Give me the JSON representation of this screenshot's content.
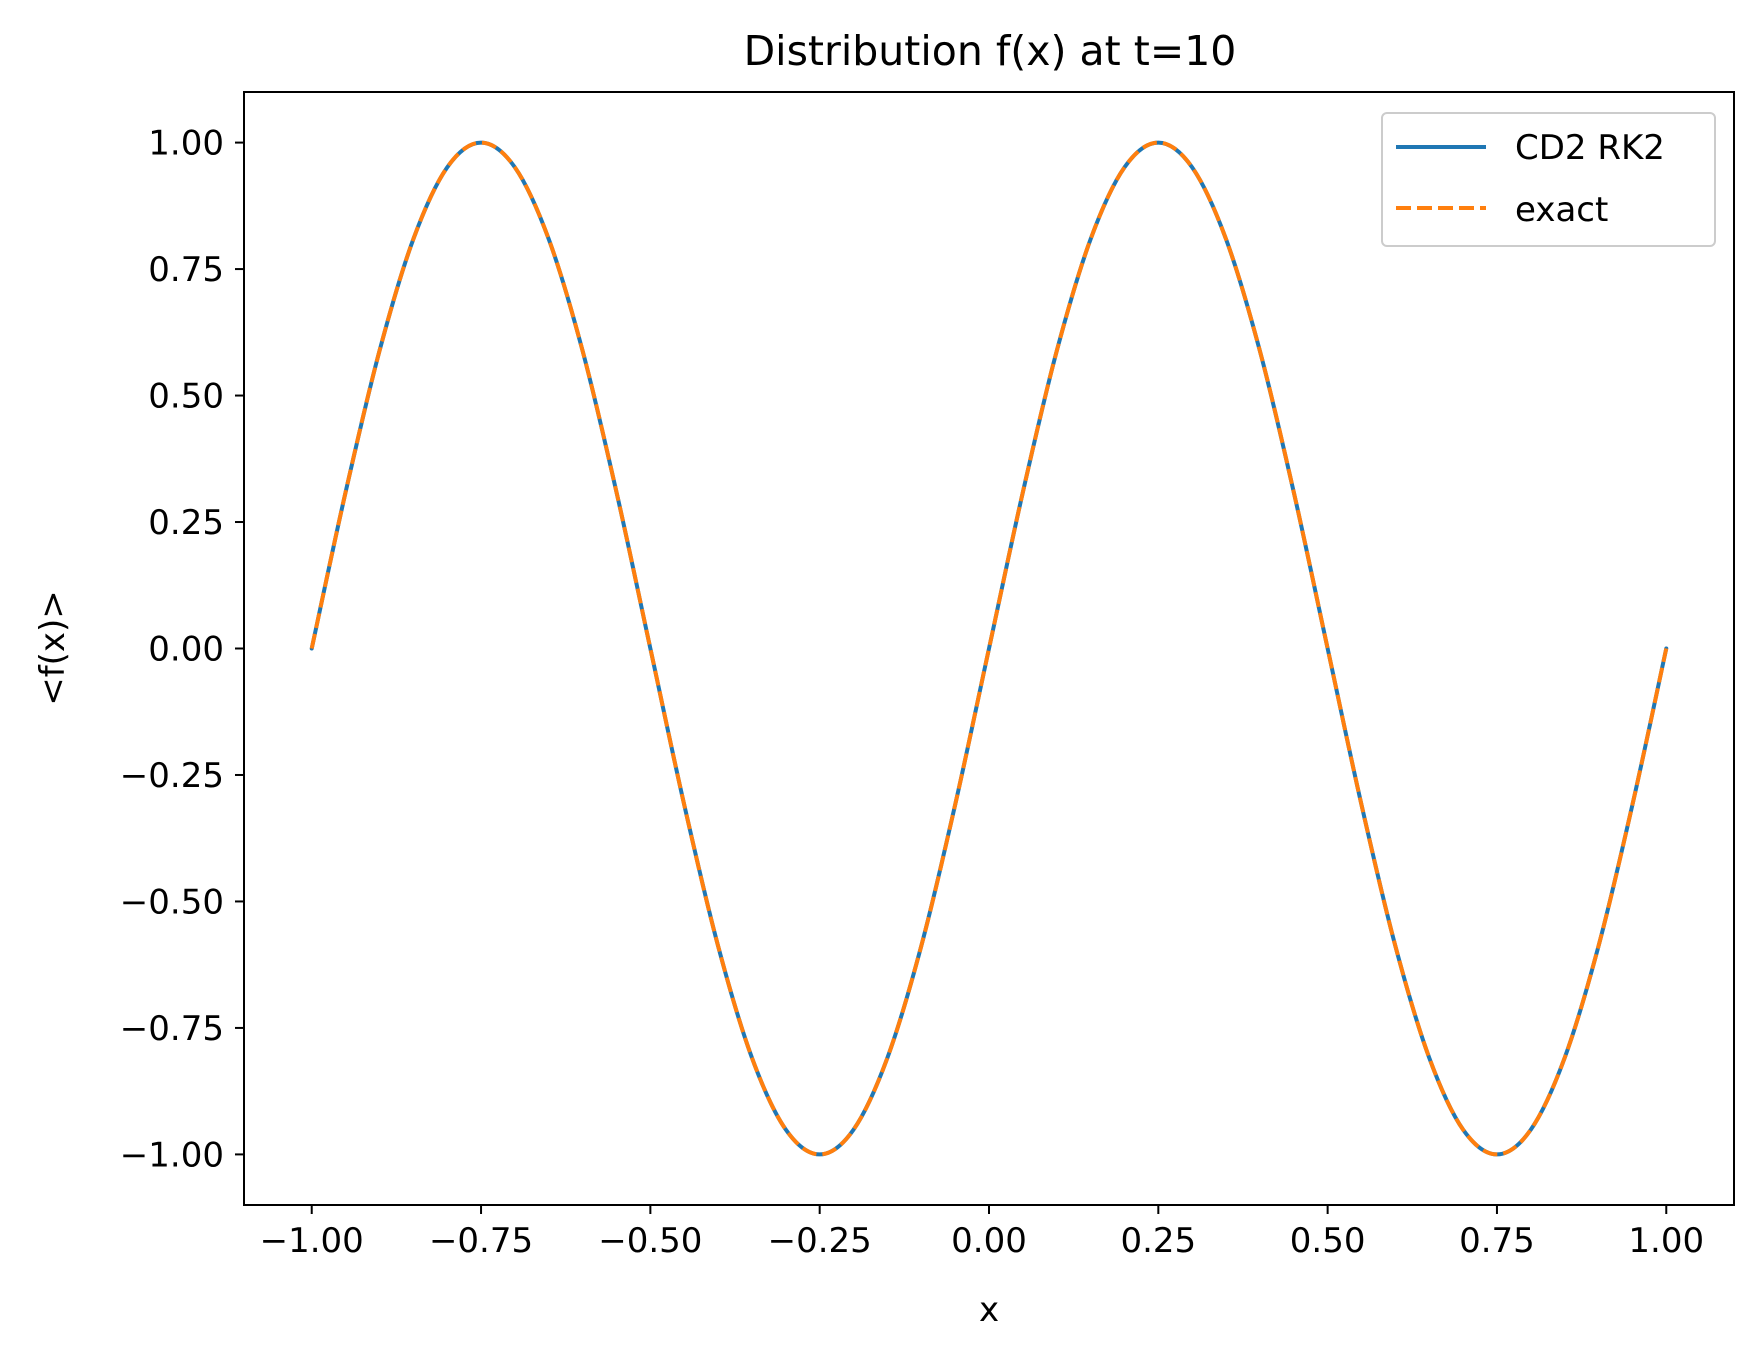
{
  "chart_data": {
    "type": "line",
    "title": "Distribution f(x) at t=10",
    "xlabel": "x",
    "ylabel": "<f(x)>",
    "xlim": [
      -1.1,
      1.1
    ],
    "ylim": [
      -1.1,
      1.1
    ],
    "x_ticks": [
      -1.0,
      -0.75,
      -0.5,
      -0.25,
      0.0,
      0.25,
      0.5,
      0.75,
      1.0
    ],
    "x_tick_labels": [
      "−1.00",
      "−0.75",
      "−0.50",
      "−0.25",
      "0.00",
      "0.25",
      "0.50",
      "0.75",
      "1.00"
    ],
    "y_ticks": [
      1.0,
      0.75,
      0.5,
      0.25,
      0.0,
      -0.25,
      -0.5,
      -0.75,
      -1.0
    ],
    "y_tick_labels": [
      "1.00",
      "0.75",
      "0.50",
      "0.25",
      "0.00",
      "−0.25",
      "−0.50",
      "−0.75",
      "−1.00"
    ],
    "grid": false,
    "legend_position": "top-right",
    "x": [
      -1.0,
      -0.95,
      -0.9,
      -0.85,
      -0.8,
      -0.75,
      -0.7,
      -0.65,
      -0.6,
      -0.55,
      -0.5,
      -0.45,
      -0.4,
      -0.35,
      -0.3,
      -0.25,
      -0.2,
      -0.15,
      -0.1,
      -0.05,
      0.0,
      0.05,
      0.1,
      0.15,
      0.2,
      0.25,
      0.3,
      0.35,
      0.4,
      0.45,
      0.5,
      0.55,
      0.6,
      0.65,
      0.7,
      0.75,
      0.8,
      0.85,
      0.9,
      0.95,
      1.0
    ],
    "series": [
      {
        "name": "CD2 RK2",
        "color": "#1f77b4",
        "line_style": "solid",
        "values": [
          0.0,
          0.309,
          0.588,
          0.809,
          0.951,
          1.0,
          0.951,
          0.809,
          0.588,
          0.309,
          0.0,
          -0.309,
          -0.588,
          -0.809,
          -0.951,
          -1.0,
          -0.951,
          -0.809,
          -0.588,
          -0.309,
          0.0,
          0.309,
          0.588,
          0.809,
          0.951,
          1.0,
          0.951,
          0.809,
          0.588,
          0.309,
          0.0,
          -0.309,
          -0.588,
          -0.809,
          -0.951,
          -1.0,
          -0.951,
          -0.809,
          -0.588,
          -0.309,
          0.0
        ]
      },
      {
        "name": "exact",
        "color": "#ff7f0e",
        "line_style": "dashed",
        "values": [
          0.0,
          0.309,
          0.588,
          0.809,
          0.951,
          1.0,
          0.951,
          0.809,
          0.588,
          0.309,
          0.0,
          -0.309,
          -0.588,
          -0.809,
          -0.951,
          -1.0,
          -0.951,
          -0.809,
          -0.588,
          -0.309,
          0.0,
          0.309,
          0.588,
          0.809,
          0.951,
          1.0,
          0.951,
          0.809,
          0.588,
          0.309,
          0.0,
          -0.309,
          -0.588,
          -0.809,
          -0.951,
          -1.0,
          -0.951,
          -0.809,
          -0.588,
          -0.309,
          0.0
        ]
      }
    ]
  }
}
